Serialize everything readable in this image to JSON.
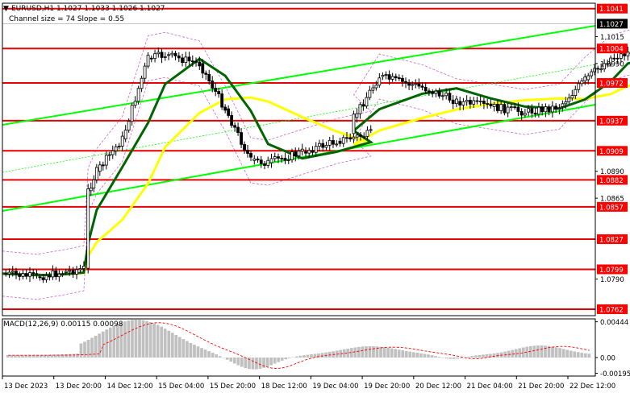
{
  "header": {
    "symbol_line": "EURUSD,H1  1.1027 1.1033 1.1026 1.1027",
    "channel_line": "Channel size = 74 Slope = 0.55"
  },
  "macd": {
    "label": "MACD(12,26,9) 0.00115 0.00098"
  },
  "chart_data": {
    "type": "candlestick",
    "title": "EURUSD,H1",
    "symbol": "EURUSD",
    "timeframe": "H1",
    "ohlc_last": {
      "open": 1.1027,
      "high": 1.1033,
      "low": 1.1026,
      "close": 1.1027
    },
    "current_price": 1.1027,
    "ylim": [
      1.0756,
      1.1046
    ],
    "y_ticks": [
      1.1015,
      1.099,
      1.089,
      1.0865,
      1.079
    ],
    "x_labels": [
      "13 Dec 2023",
      "13 Dec 20:00",
      "14 Dec 12:00",
      "15 Dec 04:00",
      "15 Dec 20:00",
      "18 Dec 12:00",
      "19 Dec 04:00",
      "19 Dec 20:00",
      "20 Dec 12:00",
      "21 Dec 04:00",
      "21 Dec 20:00",
      "22 Dec 12:00"
    ],
    "levels": [
      {
        "value": 1.1041,
        "label": "1.1041"
      },
      {
        "value": 1.1004,
        "label": "1.1004"
      },
      {
        "value": 1.0972,
        "label": "1.0972"
      },
      {
        "value": 1.0937,
        "label": "1.0937"
      },
      {
        "value": 1.0909,
        "label": "1.0909"
      },
      {
        "value": 1.0882,
        "label": "1.0882"
      },
      {
        "value": 1.0857,
        "label": "1.0857"
      },
      {
        "value": 1.0827,
        "label": "1.0827"
      },
      {
        "value": 1.0799,
        "label": "1.0799"
      },
      {
        "value": 1.0762,
        "label": "1.0762"
      }
    ],
    "channel": {
      "size": 74,
      "slope": 0.55
    },
    "price_path": [
      {
        "date": "13 Dec 00:00",
        "close": 1.0795
      },
      {
        "date": "13 Dec 08:00",
        "close": 1.0792
      },
      {
        "date": "13 Dec 14:00",
        "close": 1.0796
      },
      {
        "date": "13 Dec 19:00",
        "close": 1.08
      },
      {
        "date": "13 Dec 20:00",
        "close": 1.0872
      },
      {
        "date": "14 Dec 04:00",
        "close": 1.089
      },
      {
        "date": "14 Dec 10:00",
        "close": 1.092
      },
      {
        "date": "14 Dec 16:00",
        "close": 1.0995
      },
      {
        "date": "14 Dec 20:00",
        "close": 1.0998
      },
      {
        "date": "15 Dec 04:00",
        "close": 1.099
      },
      {
        "date": "15 Dec 10:00",
        "close": 1.0948
      },
      {
        "date": "15 Dec 16:00",
        "close": 1.09
      },
      {
        "date": "15 Dec 20:00",
        "close": 1.0898
      },
      {
        "date": "18 Dec 04:00",
        "close": 1.0908
      },
      {
        "date": "18 Dec 12:00",
        "close": 1.0918
      },
      {
        "date": "18 Dec 20:00",
        "close": 1.0925
      },
      {
        "date": "19 Dec 04:00",
        "close": 1.094
      },
      {
        "date": "19 Dec 10:00",
        "close": 1.0978
      },
      {
        "date": "19 Dec 20:00",
        "close": 1.0968
      },
      {
        "date": "20 Dec 04:00",
        "close": 1.0955
      },
      {
        "date": "20 Dec 12:00",
        "close": 1.095
      },
      {
        "date": "20 Dec 20:00",
        "close": 1.0945
      },
      {
        "date": "21 Dec 04:00",
        "close": 1.095
      },
      {
        "date": "21 Dec 10:00",
        "close": 1.0975
      },
      {
        "date": "21 Dec 16:00",
        "close": 1.0995
      },
      {
        "date": "21 Dec 20:00",
        "close": 1.1
      },
      {
        "date": "22 Dec 04:00",
        "close": 1.1005
      },
      {
        "date": "22 Dec 12:00",
        "close": 1.1027
      }
    ],
    "macd": {
      "params": "12,26,9",
      "main": 0.00115,
      "signal": 0.00098,
      "y_ticks": [
        0.00444,
        0.0,
        -0.00195
      ],
      "ylim": [
        -0.0023,
        0.0048
      ]
    },
    "colors": {
      "level_line": "#e60000",
      "level_label_bg": "#ff0000",
      "channel_line": "#00ff00",
      "ma_fast": "#006400",
      "ma_slow": "#ffff00",
      "bollinger": "#cc66cc",
      "candle": "#000000",
      "macd_hist": "#c0c0c0",
      "macd_signal": "#ff0000"
    }
  }
}
